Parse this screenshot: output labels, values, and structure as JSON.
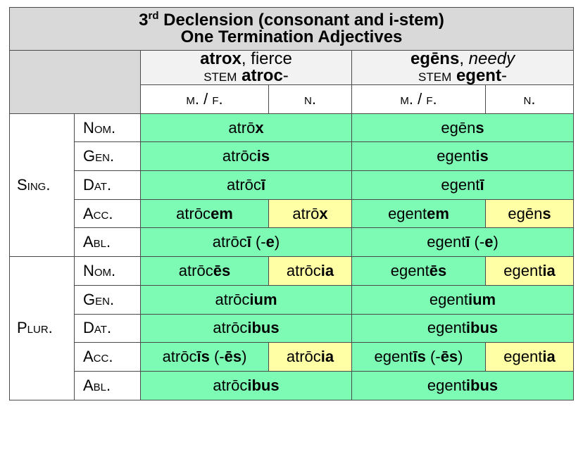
{
  "title": {
    "ordinal": "3",
    "ordinal_suffix": "rd",
    "line1_rest": " Declension (consonant and i-stem)",
    "line2": "One Termination Adjectives"
  },
  "adjectives": [
    {
      "word": "atrox",
      "sep": ", ",
      "gloss": "fierce",
      "gloss_italic": false,
      "stem_label": "stem",
      "stem": "atroc",
      "stem_suffix": "-"
    },
    {
      "word": "egēns",
      "sep": ", ",
      "gloss": "needy",
      "gloss_italic": true,
      "stem_label": "stem",
      "stem": "egent",
      "stem_suffix": "-"
    }
  ],
  "gender_headers": [
    "m. / f.",
    "n.",
    "m. / f.",
    "n."
  ],
  "numbers": {
    "singular": "Sing.",
    "plural": "Plur."
  },
  "cases": {
    "nom": "Nom.",
    "gen": "Gen.",
    "dat": "Dat.",
    "acc": "Acc.",
    "abl": "Abl."
  },
  "forms": {
    "sg_nom_a": {
      "stem": "atrō",
      "ending": "x"
    },
    "sg_nom_e": {
      "stem": "egēn",
      "ending": "s"
    },
    "sg_gen_a": {
      "stem": "atrōc",
      "ending": "is"
    },
    "sg_gen_e": {
      "stem": "egent",
      "ending": "is"
    },
    "sg_dat_a": {
      "stem": "atrōc",
      "ending": "ī"
    },
    "sg_dat_e": {
      "stem": "egent",
      "ending": "ī"
    },
    "sg_acc_a_mf": {
      "stem": "atrōc",
      "ending": "em"
    },
    "sg_acc_a_n": {
      "stem": "atrō",
      "ending": "x"
    },
    "sg_acc_e_mf": {
      "stem": "egent",
      "ending": "em"
    },
    "sg_acc_e_n": {
      "stem": "egēn",
      "ending": "s"
    },
    "sg_abl_a": {
      "stem": "atrōc",
      "ending": "ī",
      "alt_open": " (-",
      "alt": "e",
      "alt_close": ")"
    },
    "sg_abl_e": {
      "stem": "egent",
      "ending": "ī",
      "alt_open": " (-",
      "alt": "e",
      "alt_close": ")"
    },
    "pl_nom_a_mf": {
      "stem": "atrōc",
      "ending": "ēs"
    },
    "pl_nom_a_n": {
      "stem": "atrōc",
      "ending": "ia"
    },
    "pl_nom_e_mf": {
      "stem": "egent",
      "ending": "ēs"
    },
    "pl_nom_e_n": {
      "stem": "egent",
      "ending": "ia"
    },
    "pl_gen_a": {
      "stem": "atrōc",
      "ending": "ium"
    },
    "pl_gen_e": {
      "stem": "egent",
      "ending": "ium"
    },
    "pl_dat_a": {
      "stem": "atrōc",
      "ending": "ibus"
    },
    "pl_dat_e": {
      "stem": "egent",
      "ending": "ibus"
    },
    "pl_acc_a_mf": {
      "stem": "atrōc",
      "ending": "īs",
      "alt_open": " (-",
      "alt": "ēs",
      "alt_close": ")"
    },
    "pl_acc_a_n": {
      "stem": "atrōc",
      "ending": "ia"
    },
    "pl_acc_e_mf": {
      "stem": "egent",
      "ending": "īs",
      "alt_open": " (-",
      "alt": "ēs",
      "alt_close": ")"
    },
    "pl_acc_e_n": {
      "stem": "egent",
      "ending": "ia"
    },
    "pl_abl_a": {
      "stem": "atrōc",
      "ending": "ibus"
    },
    "pl_abl_e": {
      "stem": "egent",
      "ending": "ibus"
    }
  },
  "colors": {
    "header_bg": "#d9d9d9",
    "subheader_bg": "#f2f2f2",
    "shared_form_bg": "#7dfab4",
    "neuter_form_bg": "#ffffa6",
    "border": "#4a4a4a"
  }
}
